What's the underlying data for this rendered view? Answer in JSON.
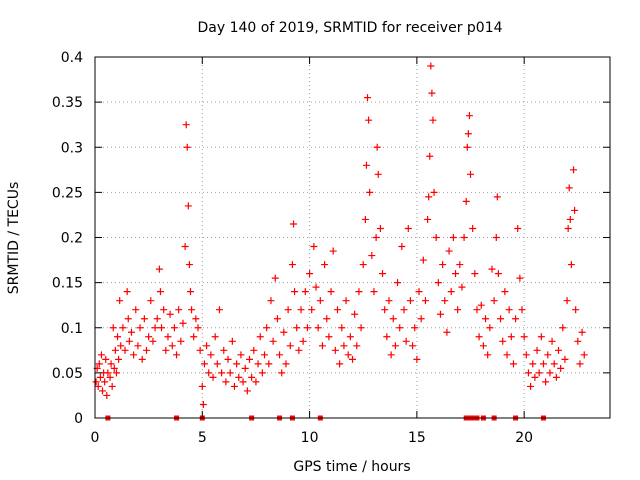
{
  "chart_data": {
    "type": "scatter",
    "title": "Day 140 of 2019, SRMTID for receiver p014",
    "xlabel": "GPS time / hours",
    "ylabel": "SRMTID / TECUs",
    "xlim": [
      0,
      24
    ],
    "ylim": [
      0,
      0.4
    ],
    "x_ticks": [
      0,
      5,
      10,
      15,
      20
    ],
    "x_tick_labels": [
      "0",
      "5",
      "10",
      "15",
      "20"
    ],
    "y_ticks": [
      0,
      0.05,
      0.1,
      0.15,
      0.2,
      0.25,
      0.3,
      0.35,
      0.4
    ],
    "y_tick_labels": [
      "0",
      "0.05",
      "0.1",
      "0.15",
      "0.2",
      "0.25",
      "0.3",
      "0.35",
      "0.4"
    ],
    "grid": true,
    "marker": "+",
    "color": "#ff0000",
    "zero_markers_x": [
      0.6,
      3.8,
      5.0,
      7.3,
      8.6,
      9.2,
      10.5,
      17.3,
      17.4,
      17.5,
      17.6,
      17.7,
      17.8,
      18.1,
      18.6,
      19.6,
      20.9
    ],
    "series": [
      {
        "name": "SRMTID",
        "points": [
          [
            0.05,
            0.04
          ],
          [
            0.1,
            0.055
          ],
          [
            0.15,
            0.035
          ],
          [
            0.2,
            0.06
          ],
          [
            0.25,
            0.045
          ],
          [
            0.3,
            0.07
          ],
          [
            0.35,
            0.03
          ],
          [
            0.4,
            0.05
          ],
          [
            0.45,
            0.04
          ],
          [
            0.5,
            0.065
          ],
          [
            0.55,
            0.025
          ],
          [
            0.6,
            0.05
          ],
          [
            0.7,
            0.045
          ],
          [
            0.75,
            0.06
          ],
          [
            0.8,
            0.035
          ],
          [
            0.85,
            0.1
          ],
          [
            0.9,
            0.055
          ],
          [
            0.95,
            0.075
          ],
          [
            1.0,
            0.05
          ],
          [
            1.05,
            0.09
          ],
          [
            1.1,
            0.065
          ],
          [
            1.15,
            0.13
          ],
          [
            1.2,
            0.08
          ],
          [
            1.3,
            0.1
          ],
          [
            1.4,
            0.075
          ],
          [
            1.5,
            0.14
          ],
          [
            1.55,
            0.11
          ],
          [
            1.6,
            0.085
          ],
          [
            1.7,
            0.095
          ],
          [
            1.8,
            0.07
          ],
          [
            1.9,
            0.12
          ],
          [
            2.0,
            0.08
          ],
          [
            2.1,
            0.1
          ],
          [
            2.2,
            0.065
          ],
          [
            2.3,
            0.11
          ],
          [
            2.4,
            0.075
          ],
          [
            2.5,
            0.09
          ],
          [
            2.6,
            0.13
          ],
          [
            2.7,
            0.085
          ],
          [
            2.8,
            0.1
          ],
          [
            2.9,
            0.11
          ],
          [
            3.0,
            0.165
          ],
          [
            3.05,
            0.14
          ],
          [
            3.1,
            0.1
          ],
          [
            3.2,
            0.12
          ],
          [
            3.3,
            0.075
          ],
          [
            3.4,
            0.09
          ],
          [
            3.5,
            0.115
          ],
          [
            3.6,
            0.08
          ],
          [
            3.7,
            0.1
          ],
          [
            3.8,
            0.07
          ],
          [
            3.9,
            0.12
          ],
          [
            4.0,
            0.085
          ],
          [
            4.1,
            0.105
          ],
          [
            4.2,
            0.19
          ],
          [
            4.25,
            0.325
          ],
          [
            4.3,
            0.3
          ],
          [
            4.35,
            0.235
          ],
          [
            4.4,
            0.17
          ],
          [
            4.45,
            0.14
          ],
          [
            4.5,
            0.12
          ],
          [
            4.6,
            0.09
          ],
          [
            4.7,
            0.11
          ],
          [
            4.8,
            0.1
          ],
          [
            4.9,
            0.075
          ],
          [
            5.0,
            0.035
          ],
          [
            5.05,
            0.015
          ],
          [
            5.1,
            0.06
          ],
          [
            5.2,
            0.08
          ],
          [
            5.3,
            0.05
          ],
          [
            5.4,
            0.07
          ],
          [
            5.5,
            0.045
          ],
          [
            5.6,
            0.09
          ],
          [
            5.7,
            0.06
          ],
          [
            5.8,
            0.12
          ],
          [
            5.9,
            0.05
          ],
          [
            6.0,
            0.075
          ],
          [
            6.1,
            0.04
          ],
          [
            6.2,
            0.065
          ],
          [
            6.3,
            0.05
          ],
          [
            6.4,
            0.085
          ],
          [
            6.5,
            0.035
          ],
          [
            6.6,
            0.06
          ],
          [
            6.7,
            0.045
          ],
          [
            6.8,
            0.07
          ],
          [
            6.9,
            0.04
          ],
          [
            7.0,
            0.055
          ],
          [
            7.1,
            0.03
          ],
          [
            7.2,
            0.065
          ],
          [
            7.3,
            0.045
          ],
          [
            7.4,
            0.075
          ],
          [
            7.5,
            0.04
          ],
          [
            7.6,
            0.06
          ],
          [
            7.7,
            0.09
          ],
          [
            7.8,
            0.05
          ],
          [
            7.9,
            0.07
          ],
          [
            8.0,
            0.1
          ],
          [
            8.1,
            0.06
          ],
          [
            8.2,
            0.13
          ],
          [
            8.3,
            0.085
          ],
          [
            8.4,
            0.155
          ],
          [
            8.5,
            0.11
          ],
          [
            8.6,
            0.07
          ],
          [
            8.7,
            0.05
          ],
          [
            8.8,
            0.095
          ],
          [
            8.9,
            0.06
          ],
          [
            9.0,
            0.12
          ],
          [
            9.1,
            0.08
          ],
          [
            9.2,
            0.17
          ],
          [
            9.25,
            0.215
          ],
          [
            9.3,
            0.14
          ],
          [
            9.4,
            0.1
          ],
          [
            9.5,
            0.075
          ],
          [
            9.6,
            0.12
          ],
          [
            9.7,
            0.085
          ],
          [
            9.8,
            0.14
          ],
          [
            9.9,
            0.1
          ],
          [
            10.0,
            0.16
          ],
          [
            10.1,
            0.12
          ],
          [
            10.2,
            0.19
          ],
          [
            10.3,
            0.145
          ],
          [
            10.4,
            0.1
          ],
          [
            10.5,
            0.13
          ],
          [
            10.6,
            0.08
          ],
          [
            10.7,
            0.17
          ],
          [
            10.8,
            0.11
          ],
          [
            10.9,
            0.09
          ],
          [
            11.0,
            0.14
          ],
          [
            11.1,
            0.185
          ],
          [
            11.2,
            0.075
          ],
          [
            11.3,
            0.12
          ],
          [
            11.4,
            0.06
          ],
          [
            11.5,
            0.1
          ],
          [
            11.6,
            0.08
          ],
          [
            11.7,
            0.13
          ],
          [
            11.8,
            0.07
          ],
          [
            11.9,
            0.09
          ],
          [
            12.0,
            0.065
          ],
          [
            12.1,
            0.115
          ],
          [
            12.2,
            0.08
          ],
          [
            12.3,
            0.14
          ],
          [
            12.4,
            0.1
          ],
          [
            12.5,
            0.17
          ],
          [
            12.6,
            0.22
          ],
          [
            12.65,
            0.28
          ],
          [
            12.7,
            0.355
          ],
          [
            12.75,
            0.33
          ],
          [
            12.8,
            0.25
          ],
          [
            12.9,
            0.18
          ],
          [
            13.0,
            0.14
          ],
          [
            13.1,
            0.2
          ],
          [
            13.15,
            0.3
          ],
          [
            13.2,
            0.27
          ],
          [
            13.3,
            0.21
          ],
          [
            13.4,
            0.16
          ],
          [
            13.5,
            0.12
          ],
          [
            13.6,
            0.09
          ],
          [
            13.7,
            0.13
          ],
          [
            13.8,
            0.07
          ],
          [
            13.9,
            0.11
          ],
          [
            14.0,
            0.08
          ],
          [
            14.1,
            0.15
          ],
          [
            14.2,
            0.1
          ],
          [
            14.3,
            0.19
          ],
          [
            14.4,
            0.12
          ],
          [
            14.5,
            0.085
          ],
          [
            14.6,
            0.21
          ],
          [
            14.7,
            0.13
          ],
          [
            14.8,
            0.08
          ],
          [
            14.9,
            0.1
          ],
          [
            15.0,
            0.065
          ],
          [
            15.1,
            0.14
          ],
          [
            15.2,
            0.11
          ],
          [
            15.3,
            0.175
          ],
          [
            15.4,
            0.13
          ],
          [
            15.5,
            0.22
          ],
          [
            15.55,
            0.245
          ],
          [
            15.6,
            0.29
          ],
          [
            15.65,
            0.39
          ],
          [
            15.7,
            0.36
          ],
          [
            15.75,
            0.33
          ],
          [
            15.8,
            0.25
          ],
          [
            15.9,
            0.2
          ],
          [
            16.0,
            0.15
          ],
          [
            16.1,
            0.115
          ],
          [
            16.2,
            0.17
          ],
          [
            16.3,
            0.13
          ],
          [
            16.4,
            0.095
          ],
          [
            16.5,
            0.185
          ],
          [
            16.6,
            0.14
          ],
          [
            16.7,
            0.2
          ],
          [
            16.8,
            0.16
          ],
          [
            16.9,
            0.12
          ],
          [
            17.0,
            0.17
          ],
          [
            17.1,
            0.145
          ],
          [
            17.2,
            0.2
          ],
          [
            17.3,
            0.24
          ],
          [
            17.35,
            0.3
          ],
          [
            17.4,
            0.315
          ],
          [
            17.45,
            0.335
          ],
          [
            17.5,
            0.27
          ],
          [
            17.6,
            0.21
          ],
          [
            17.7,
            0.16
          ],
          [
            17.8,
            0.12
          ],
          [
            17.9,
            0.09
          ],
          [
            18.0,
            0.125
          ],
          [
            18.1,
            0.08
          ],
          [
            18.2,
            0.11
          ],
          [
            18.3,
            0.07
          ],
          [
            18.4,
            0.1
          ],
          [
            18.5,
            0.165
          ],
          [
            18.6,
            0.13
          ],
          [
            18.7,
            0.2
          ],
          [
            18.75,
            0.245
          ],
          [
            18.8,
            0.16
          ],
          [
            18.9,
            0.11
          ],
          [
            19.0,
            0.085
          ],
          [
            19.1,
            0.14
          ],
          [
            19.2,
            0.07
          ],
          [
            19.3,
            0.12
          ],
          [
            19.4,
            0.09
          ],
          [
            19.5,
            0.06
          ],
          [
            19.6,
            0.11
          ],
          [
            19.7,
            0.21
          ],
          [
            19.8,
            0.155
          ],
          [
            19.9,
            0.12
          ],
          [
            20.0,
            0.09
          ],
          [
            20.1,
            0.07
          ],
          [
            20.2,
            0.05
          ],
          [
            20.3,
            0.035
          ],
          [
            20.4,
            0.06
          ],
          [
            20.5,
            0.045
          ],
          [
            20.6,
            0.075
          ],
          [
            20.7,
            0.05
          ],
          [
            20.8,
            0.09
          ],
          [
            20.9,
            0.06
          ],
          [
            21.0,
            0.04
          ],
          [
            21.1,
            0.07
          ],
          [
            21.2,
            0.05
          ],
          [
            21.3,
            0.085
          ],
          [
            21.4,
            0.06
          ],
          [
            21.5,
            0.045
          ],
          [
            21.6,
            0.075
          ],
          [
            21.7,
            0.055
          ],
          [
            21.8,
            0.1
          ],
          [
            21.9,
            0.065
          ],
          [
            22.0,
            0.13
          ],
          [
            22.05,
            0.21
          ],
          [
            22.1,
            0.255
          ],
          [
            22.15,
            0.22
          ],
          [
            22.2,
            0.17
          ],
          [
            22.3,
            0.275
          ],
          [
            22.35,
            0.23
          ],
          [
            22.4,
            0.12
          ],
          [
            22.5,
            0.085
          ],
          [
            22.6,
            0.06
          ],
          [
            22.7,
            0.095
          ],
          [
            22.8,
            0.07
          ]
        ]
      }
    ]
  }
}
